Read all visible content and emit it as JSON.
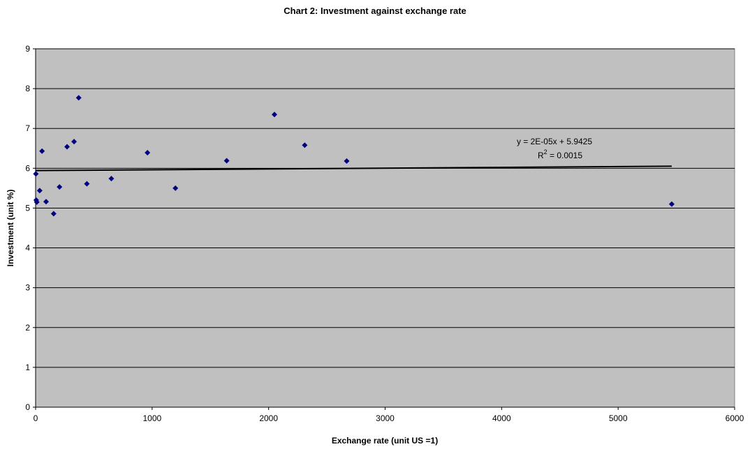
{
  "chart_data": {
    "type": "scatter",
    "title": "Chart 2: Investment against exchange rate",
    "xlabel": "Exchange rate (unit US =1)",
    "ylabel": "Investment (unit %)",
    "xlim": [
      0,
      6000
    ],
    "ylim": [
      0,
      9
    ],
    "xticks": [
      0,
      1000,
      2000,
      3000,
      4000,
      5000,
      6000
    ],
    "yticks": [
      0,
      1,
      2,
      3,
      4,
      5,
      6,
      7,
      8,
      9
    ],
    "grid": true,
    "legend": "none",
    "plot_background": "#c0c0c0",
    "marker_color": "#000080",
    "series": [
      {
        "points": [
          {
            "x": 2,
            "y": 5.86
          },
          {
            "x": 5,
            "y": 5.2
          },
          {
            "x": 10,
            "y": 5.15
          },
          {
            "x": 35,
            "y": 5.44
          },
          {
            "x": 55,
            "y": 6.43
          },
          {
            "x": 90,
            "y": 5.16
          },
          {
            "x": 155,
            "y": 4.86
          },
          {
            "x": 205,
            "y": 5.53
          },
          {
            "x": 270,
            "y": 6.54
          },
          {
            "x": 330,
            "y": 6.67
          },
          {
            "x": 370,
            "y": 7.77
          },
          {
            "x": 440,
            "y": 5.61
          },
          {
            "x": 650,
            "y": 5.74
          },
          {
            "x": 960,
            "y": 6.39
          },
          {
            "x": 1200,
            "y": 5.5
          },
          {
            "x": 1640,
            "y": 6.19
          },
          {
            "x": 2050,
            "y": 7.35
          },
          {
            "x": 2310,
            "y": 6.58
          },
          {
            "x": 2670,
            "y": 6.18
          },
          {
            "x": 5460,
            "y": 5.1
          }
        ]
      }
    ],
    "trendline": {
      "type": "linear",
      "slope": 2e-05,
      "intercept": 5.9425,
      "x_range": [
        0,
        5460
      ],
      "equation_label": "y = 2E-05x + 5.9425",
      "r2_prefix": "R",
      "r2_sup": "2",
      "r2_suffix": " = 0.0015"
    }
  }
}
